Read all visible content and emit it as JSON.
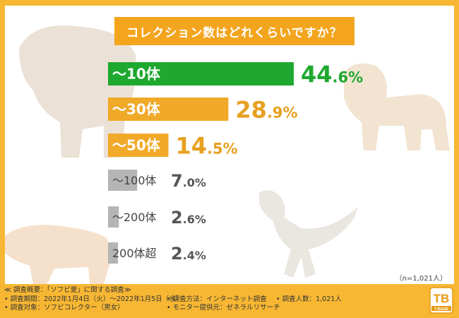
{
  "title": "コレクション数はどれくらいですか？",
  "note": "（n=1,021人）",
  "footer": {
    "heading": "≪ 調査概要：「ソフビ愛」に関する調査≫",
    "period": "• 調査期間：2022年1月4日（火）〜2022年1月5日（水）",
    "method": "• 調査方法：インターネット調査",
    "people": "• 調査人数：1,021人",
    "target": "• 調査対象：ソフビコレクター（男女）",
    "provider": "• モニター提供元：ゼネラルリサーチ"
  },
  "logo_text": "T-BASE",
  "colors": {
    "background": "#F7B733",
    "title_box": "#F3A51E",
    "top_bar": "#1FA82F",
    "mid_bar": "#F0A928",
    "low_bar": "#B5B5B5"
  },
  "chart_data": {
    "type": "bar",
    "orientation": "horizontal",
    "categories": [
      "〜10体",
      "〜30体",
      "〜50体",
      "〜100体",
      "〜200体",
      "200体超"
    ],
    "values": [
      44.6,
      28.9,
      14.5,
      7.0,
      2.6,
      2.4
    ],
    "value_labels": [
      {
        "int": "44",
        "dec": ".6%"
      },
      {
        "int": "28",
        "dec": ".9%"
      },
      {
        "int": "14",
        "dec": ".5%"
      },
      {
        "int": "7",
        "dec": ".0%"
      },
      {
        "int": "2",
        "dec": ".6%"
      },
      {
        "int": "2",
        "dec": ".4%"
      }
    ],
    "bar_colors": [
      "#1FA82F",
      "#F0A928",
      "#F0A928",
      "#B5B5B5",
      "#B5B5B5",
      "#B5B5B5"
    ],
    "value_colors": [
      "#1FA82F",
      "#E7A021",
      "#E7A021",
      "#555555",
      "#555555",
      "#555555"
    ],
    "highlight_count": 3,
    "title": "コレクション数はどれくらいですか？",
    "xlabel": "",
    "ylabel": ""
  }
}
